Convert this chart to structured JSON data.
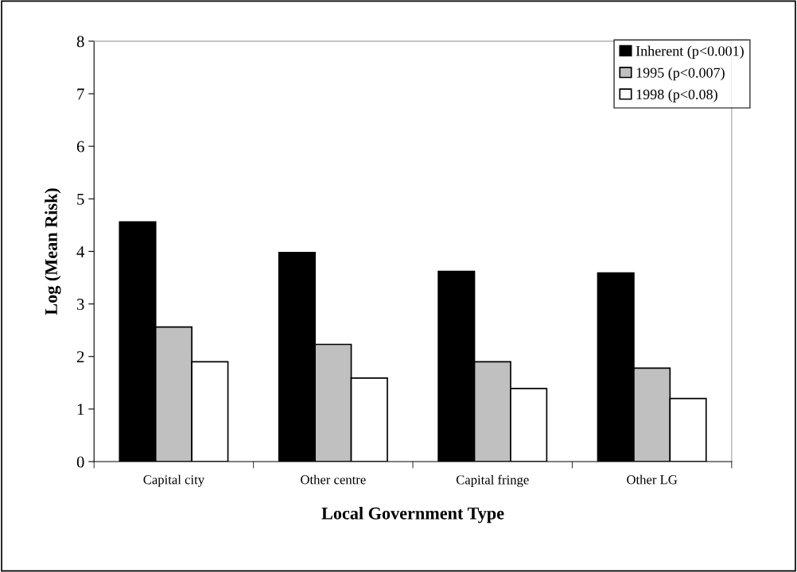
{
  "chart_data": {
    "type": "bar",
    "xlabel": "Local Government Type",
    "ylabel": "Log (Mean Risk)",
    "categories": [
      "Capital city",
      "Other centre",
      "Capital fringe",
      "Other LG"
    ],
    "series": [
      {
        "name": "Inherent (p<0.001)",
        "color": "#000000",
        "values": [
          4.56,
          3.98,
          3.62,
          3.59
        ]
      },
      {
        "name": "1995 (p<0.007)",
        "color": "#c0c0c0",
        "values": [
          2.56,
          2.23,
          1.9,
          1.78
        ]
      },
      {
        "name": "1998 (p<0.08)",
        "color": "#ffffff",
        "values": [
          1.9,
          1.59,
          1.39,
          1.2
        ]
      }
    ],
    "ylim": [
      0,
      8
    ],
    "yticks": [
      0,
      1,
      2,
      3,
      4,
      5,
      6,
      7,
      8
    ],
    "grid": false,
    "legend": "top right"
  }
}
